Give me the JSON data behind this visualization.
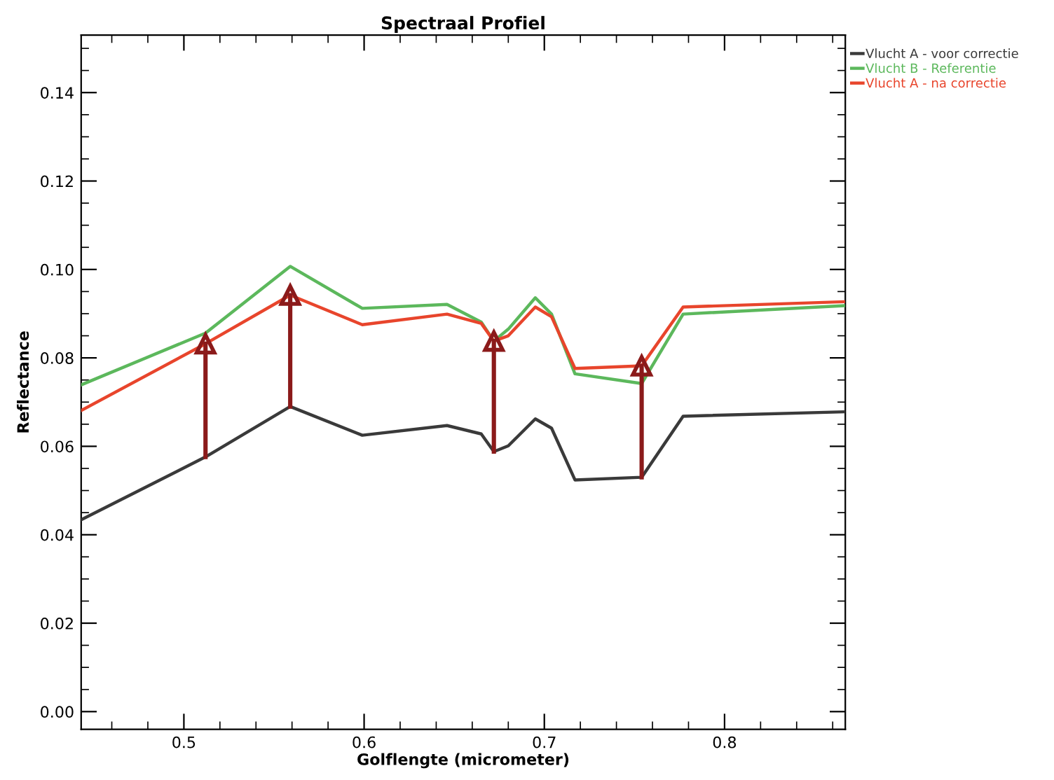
{
  "chart_data": {
    "type": "line",
    "title": "Spectraal Profiel",
    "xlabel": "Golflengte (micrometer)",
    "ylabel": "Reflectance",
    "xlim": [
      0.443,
      0.867
    ],
    "xticks": [
      0.5,
      0.6,
      0.7,
      0.8
    ],
    "ylim": [
      -0.004,
      0.153
    ],
    "yticks": [
      {
        "value": 0.0,
        "label": "0.00"
      },
      {
        "value": 0.02,
        "label": "0.02"
      },
      {
        "value": 0.04,
        "label": "0.04"
      },
      {
        "value": 0.06,
        "label": "0.06"
      },
      {
        "value": 0.08,
        "label": "0.08"
      },
      {
        "value": 0.1,
        "label": "0.10"
      },
      {
        "value": 0.12,
        "label": "0.12"
      },
      {
        "value": 0.14,
        "label": "0.14"
      }
    ],
    "grid": false,
    "legend": "top right",
    "line_style": "solid",
    "marker": "none",
    "x": [
      0.443,
      0.512,
      0.559,
      0.599,
      0.646,
      0.665,
      0.672,
      0.68,
      0.695,
      0.704,
      0.717,
      0.754,
      0.777,
      0.866
    ],
    "series": [
      {
        "name": "Vlucht A - voor correctie",
        "color": "#3a3a3a",
        "values": [
          0.0434,
          0.0576,
          0.069,
          0.0625,
          0.0647,
          0.0628,
          0.0588,
          0.0601,
          0.0662,
          0.0641,
          0.0524,
          0.053,
          0.0668,
          0.0678
        ]
      },
      {
        "name": "Vlucht B - Referentie",
        "color": "#5cb85c",
        "values": [
          0.0739,
          0.0856,
          0.1007,
          0.0912,
          0.0921,
          0.0881,
          0.0838,
          0.0865,
          0.0936,
          0.0899,
          0.0764,
          0.0742,
          0.0899,
          0.0918
        ]
      },
      {
        "name": "Vlucht A - na correctie",
        "color": "#e8452c",
        "values": [
          0.0681,
          0.0832,
          0.0942,
          0.0875,
          0.0899,
          0.0878,
          0.0838,
          0.085,
          0.0915,
          0.0893,
          0.0776,
          0.0782,
          0.0915,
          0.0927
        ]
      },
      {
        "type": "line",
        "marker": "triangle",
        "color": "#8b1a1a",
        "x": [
          0.512,
          0.512
        ],
        "values": [
          0.0576,
          0.0832
        ]
      },
      {
        "type": "line",
        "marker": "triangle",
        "color": "#8b1a1a",
        "x": [
          0.559,
          0.559
        ],
        "values": [
          0.069,
          0.0942
        ]
      },
      {
        "type": "line",
        "marker": "triangle",
        "color": "#8b1a1a",
        "x": [
          0.672,
          0.672
        ],
        "values": [
          0.0588,
          0.0838
        ]
      },
      {
        "type": "line",
        "marker": "triangle",
        "color": "#8b1a1a",
        "x": [
          0.754,
          0.754
        ],
        "values": [
          0.053,
          0.0782
        ]
      }
    ]
  }
}
